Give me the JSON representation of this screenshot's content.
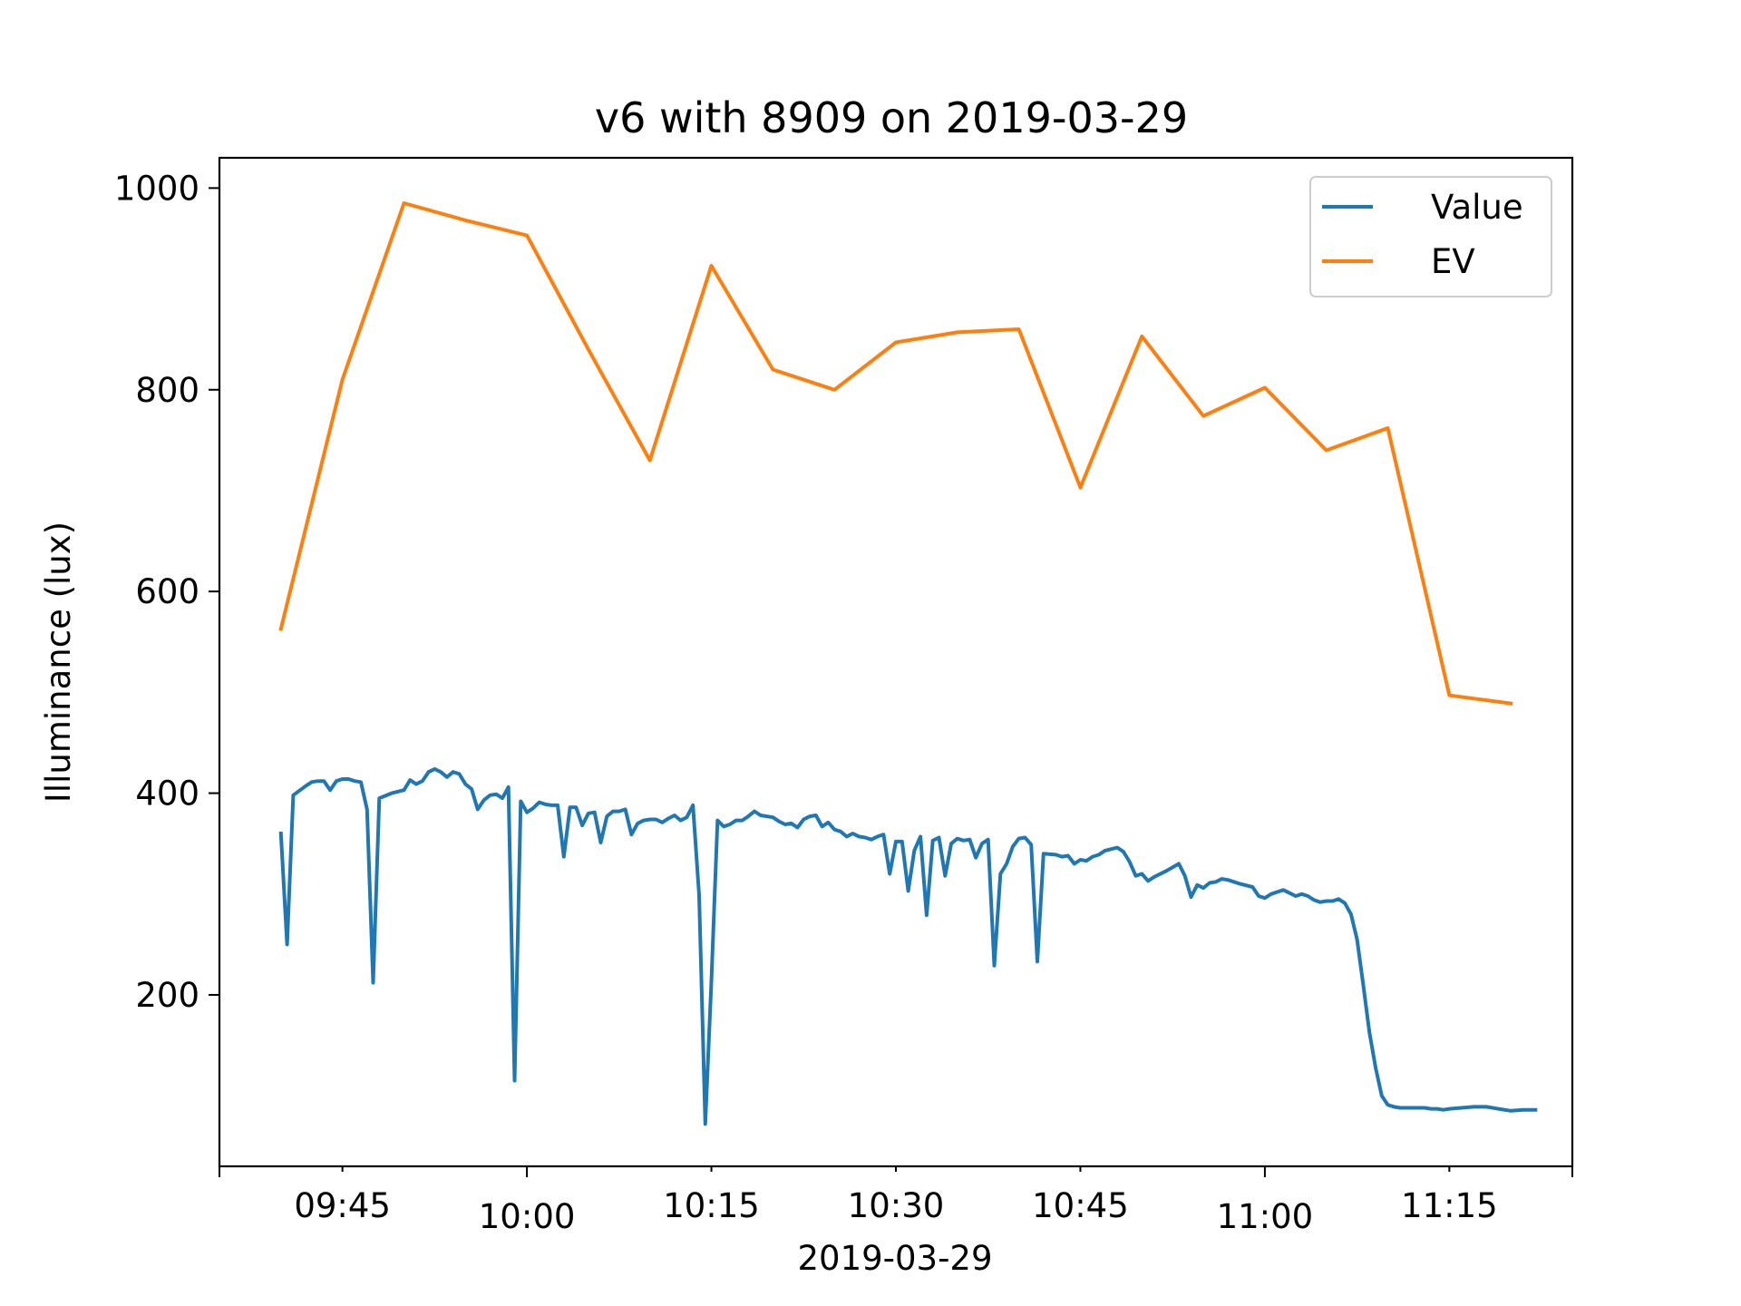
{
  "chart_data": {
    "type": "line",
    "title": "v6 with 8909 on 2019-03-29",
    "xlabel": "2019-03-29",
    "ylabel": "Illuminance (lux)",
    "x_ticks": [
      "09:45",
      "10:00",
      "10:15",
      "10:30",
      "10:45",
      "11:00",
      "11:15"
    ],
    "x_range": [
      "09:35",
      "11:25"
    ],
    "y_ticks": [
      200,
      400,
      600,
      800,
      1000
    ],
    "ylim": [
      30,
      1030
    ],
    "grid": false,
    "legend_position": "top-right",
    "colors": {
      "Value": "#1f77b4",
      "EV": "#ff7f0e"
    },
    "series": [
      {
        "name": "Value",
        "color": "#1f77b4",
        "points": [
          [
            "09:40",
            360
          ],
          [
            "09:40:30",
            250
          ],
          [
            "09:41",
            398
          ],
          [
            "09:42",
            407
          ],
          [
            "09:42:30",
            411
          ],
          [
            "09:43",
            412
          ],
          [
            "09:43:30",
            412
          ],
          [
            "09:44",
            403
          ],
          [
            "09:44:30",
            412
          ],
          [
            "09:45",
            414
          ],
          [
            "09:45:30",
            414
          ],
          [
            "09:46",
            412
          ],
          [
            "09:46:30",
            411
          ],
          [
            "09:47",
            384
          ],
          [
            "09:47:30",
            212
          ],
          [
            "09:48",
            395
          ],
          [
            "09:49",
            400
          ],
          [
            "09:50",
            403
          ],
          [
            "09:50:30",
            413
          ],
          [
            "09:51",
            409
          ],
          [
            "09:51:30",
            412
          ],
          [
            "09:52",
            421
          ],
          [
            "09:52:30",
            424
          ],
          [
            "09:53",
            421
          ],
          [
            "09:53:30",
            416
          ],
          [
            "09:54",
            421
          ],
          [
            "09:54:30",
            419
          ],
          [
            "09:55",
            409
          ],
          [
            "09:55:30",
            404
          ],
          [
            "09:56",
            384
          ],
          [
            "09:56:30",
            393
          ],
          [
            "09:57",
            398
          ],
          [
            "09:57:30",
            399
          ],
          [
            "09:58",
            395
          ],
          [
            "09:58:30",
            406
          ],
          [
            "09:59",
            115
          ],
          [
            "09:59:30",
            392
          ],
          [
            "10:00",
            381
          ],
          [
            "10:00:30",
            385
          ],
          [
            "10:01",
            391
          ],
          [
            "10:01:30",
            389
          ],
          [
            "10:02",
            388
          ],
          [
            "10:02:30",
            388
          ],
          [
            "10:03",
            337
          ],
          [
            "10:03:30",
            386
          ],
          [
            "10:04",
            386
          ],
          [
            "10:04:30",
            368
          ],
          [
            "10:05",
            380
          ],
          [
            "10:05:30",
            381
          ],
          [
            "10:06",
            351
          ],
          [
            "10:06:30",
            377
          ],
          [
            "10:07",
            382
          ],
          [
            "10:07:30",
            382
          ],
          [
            "10:08",
            384
          ],
          [
            "10:08:30",
            359
          ],
          [
            "10:09",
            370
          ],
          [
            "10:09:30",
            373
          ],
          [
            "10:10",
            374
          ],
          [
            "10:10:30",
            374
          ],
          [
            "10:11",
            371
          ],
          [
            "10:11:30",
            375
          ],
          [
            "10:12",
            378
          ],
          [
            "10:12:30",
            373
          ],
          [
            "10:13",
            376
          ],
          [
            "10:13:30",
            388
          ],
          [
            "10:14",
            299
          ],
          [
            "10:14:30",
            72
          ],
          [
            "10:15",
            213
          ],
          [
            "10:15:30",
            373
          ],
          [
            "10:16",
            367
          ],
          [
            "10:16:30",
            369
          ],
          [
            "10:17",
            373
          ],
          [
            "10:17:30",
            373
          ],
          [
            "10:18",
            377
          ],
          [
            "10:18:30",
            382
          ],
          [
            "10:19",
            378
          ],
          [
            "10:20",
            376
          ],
          [
            "10:20:30",
            372
          ],
          [
            "10:21",
            369
          ],
          [
            "10:21:30",
            370
          ],
          [
            "10:22",
            366
          ],
          [
            "10:22:30",
            374
          ],
          [
            "10:23",
            377
          ],
          [
            "10:23:30",
            378
          ],
          [
            "10:24",
            367
          ],
          [
            "10:24:30",
            371
          ],
          [
            "10:25",
            364
          ],
          [
            "10:25:30",
            362
          ],
          [
            "10:26",
            357
          ],
          [
            "10:26:30",
            360
          ],
          [
            "10:27",
            357
          ],
          [
            "10:27:30",
            356
          ],
          [
            "10:28",
            354
          ],
          [
            "10:28:30",
            357
          ],
          [
            "10:29",
            359
          ],
          [
            "10:29:30",
            320
          ],
          [
            "10:30",
            352
          ],
          [
            "10:30:30",
            352
          ],
          [
            "10:31",
            303
          ],
          [
            "10:31:30",
            343
          ],
          [
            "10:32",
            357
          ],
          [
            "10:32:30",
            279
          ],
          [
            "10:33",
            353
          ],
          [
            "10:33:30",
            356
          ],
          [
            "10:34",
            318
          ],
          [
            "10:34:30",
            350
          ],
          [
            "10:35",
            355
          ],
          [
            "10:35:30",
            353
          ],
          [
            "10:36",
            354
          ],
          [
            "10:36:30",
            336
          ],
          [
            "10:37",
            350
          ],
          [
            "10:37:30",
            354
          ],
          [
            "10:38",
            229
          ],
          [
            "10:38:30",
            320
          ],
          [
            "10:39",
            330
          ],
          [
            "10:39:30",
            347
          ],
          [
            "10:40",
            355
          ],
          [
            "10:40:30",
            356
          ],
          [
            "10:41",
            349
          ],
          [
            "10:41:30",
            233
          ],
          [
            "10:42",
            340
          ],
          [
            "10:43",
            339
          ],
          [
            "10:43:30",
            337
          ],
          [
            "10:44",
            338
          ],
          [
            "10:44:30",
            330
          ],
          [
            "10:45",
            334
          ],
          [
            "10:45:30",
            333
          ],
          [
            "10:46",
            337
          ],
          [
            "10:46:30",
            339
          ],
          [
            "10:47",
            343
          ],
          [
            "10:48",
            346
          ],
          [
            "10:48:30",
            342
          ],
          [
            "10:49",
            332
          ],
          [
            "10:49:30",
            318
          ],
          [
            "10:50",
            320
          ],
          [
            "10:50:30",
            313
          ],
          [
            "10:51",
            317
          ],
          [
            "10:52",
            323
          ],
          [
            "10:53",
            330
          ],
          [
            "10:53:30",
            318
          ],
          [
            "10:54",
            297
          ],
          [
            "10:54:30",
            309
          ],
          [
            "10:55",
            306
          ],
          [
            "10:55:30",
            311
          ],
          [
            "10:56",
            312
          ],
          [
            "10:56:30",
            315
          ],
          [
            "10:57",
            314
          ],
          [
            "10:58",
            310
          ],
          [
            "10:59",
            307
          ],
          [
            "10:59:30",
            298
          ],
          [
            "11:00",
            296
          ],
          [
            "11:00:30",
            300
          ],
          [
            "11:01",
            302
          ],
          [
            "11:01:30",
            304
          ],
          [
            "11:02",
            301
          ],
          [
            "11:02:30",
            298
          ],
          [
            "11:03",
            300
          ],
          [
            "11:03:30",
            298
          ],
          [
            "11:04",
            294
          ],
          [
            "11:04:30",
            292
          ],
          [
            "11:05",
            293
          ],
          [
            "11:05:30",
            293
          ],
          [
            "11:06",
            295
          ],
          [
            "11:06:30",
            291
          ],
          [
            "11:07",
            280
          ],
          [
            "11:07:30",
            255
          ],
          [
            "11:08",
            210
          ],
          [
            "11:08:30",
            163
          ],
          [
            "11:09",
            128
          ],
          [
            "11:09:30",
            100
          ],
          [
            "11:10",
            91
          ],
          [
            "11:10:30",
            89
          ],
          [
            "11:11",
            88
          ],
          [
            "11:12",
            88
          ],
          [
            "11:13",
            88
          ],
          [
            "11:13:30",
            87
          ],
          [
            "11:14",
            87
          ],
          [
            "11:14:30",
            86
          ],
          [
            "11:15",
            87
          ],
          [
            "11:16",
            88
          ],
          [
            "11:17",
            89
          ],
          [
            "11:18",
            89
          ],
          [
            "11:19",
            87
          ],
          [
            "11:20",
            85
          ],
          [
            "11:21",
            86
          ],
          [
            "11:22",
            86
          ]
        ]
      },
      {
        "name": "EV",
        "color": "#ff7f0e",
        "points": [
          [
            "09:40",
            563
          ],
          [
            "09:45",
            810
          ],
          [
            "09:50",
            985
          ],
          [
            "09:55",
            968
          ],
          [
            "10:00",
            953
          ],
          [
            "10:05",
            840
          ],
          [
            "10:10",
            730
          ],
          [
            "10:15",
            923
          ],
          [
            "10:20",
            820
          ],
          [
            "10:25",
            800
          ],
          [
            "10:30",
            847
          ],
          [
            "10:35",
            857
          ],
          [
            "10:40",
            860
          ],
          [
            "10:45",
            703
          ],
          [
            "10:50",
            853
          ],
          [
            "10:55",
            774
          ],
          [
            "11:00",
            802
          ],
          [
            "11:05",
            740
          ],
          [
            "11:10",
            762
          ],
          [
            "11:15",
            497
          ],
          [
            "11:20",
            489
          ]
        ]
      }
    ]
  }
}
